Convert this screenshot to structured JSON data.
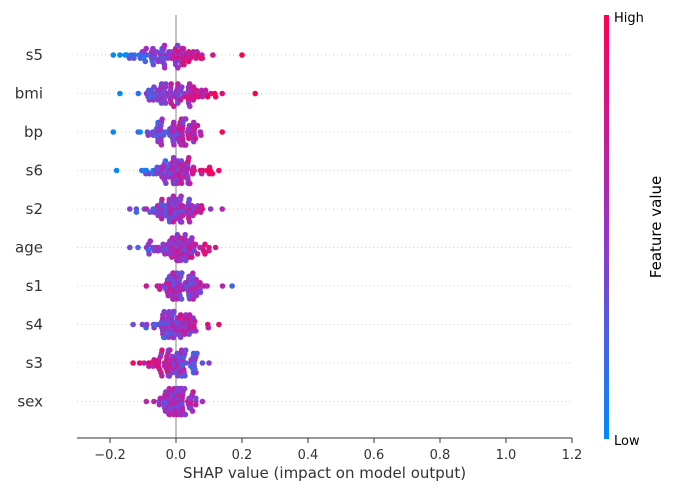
{
  "chart_data": {
    "type": "scatter",
    "subtype": "shap-beeswarm",
    "xlabel": "SHAP value (impact on model output)",
    "xlim": [
      -0.3,
      1.2
    ],
    "xticks": [
      -0.2,
      0.0,
      0.2,
      0.4,
      0.6,
      0.8,
      1.0,
      1.2
    ],
    "xtick_labels": [
      "−0.2",
      "0.0",
      "0.2",
      "0.4",
      "0.6",
      "0.8",
      "1.0",
      "1.2"
    ],
    "grid": false,
    "colorbar": {
      "title": "Feature value",
      "high_label": "High",
      "low_label": "Low",
      "low_color": "#008bfb",
      "high_color": "#ff0052"
    },
    "features": [
      {
        "name": "s5",
        "min": -0.19,
        "max": 0.2,
        "center": -0.02,
        "spread": 0.065,
        "skew": 0.35
      },
      {
        "name": "bmi",
        "min": -0.17,
        "max": 0.24,
        "center": -0.01,
        "spread": 0.06,
        "skew": 0.3
      },
      {
        "name": "bp",
        "min": -0.19,
        "max": 0.14,
        "center": 0.0,
        "spread": 0.05,
        "skew": 0.3
      },
      {
        "name": "s6",
        "min": -0.18,
        "max": 0.13,
        "center": 0.0,
        "spread": 0.045,
        "skew": 0.3
      },
      {
        "name": "s2",
        "min": -0.14,
        "max": 0.14,
        "center": 0.0,
        "spread": 0.045,
        "skew": 0.1
      },
      {
        "name": "age",
        "min": -0.14,
        "max": 0.12,
        "center": 0.0,
        "spread": 0.045,
        "skew": 0.15
      },
      {
        "name": "s1",
        "min": -0.09,
        "max": 0.17,
        "center": 0.01,
        "spread": 0.04,
        "skew": -0.05
      },
      {
        "name": "s4",
        "min": -0.13,
        "max": 0.13,
        "center": 0.0,
        "spread": 0.04,
        "skew": 0.2
      },
      {
        "name": "s3",
        "min": -0.13,
        "max": 0.1,
        "center": 0.0,
        "spread": 0.04,
        "skew": -0.25
      },
      {
        "name": "sex",
        "min": -0.09,
        "max": 0.08,
        "center": 0.0,
        "spread": 0.03,
        "skew": 0.05
      }
    ]
  }
}
